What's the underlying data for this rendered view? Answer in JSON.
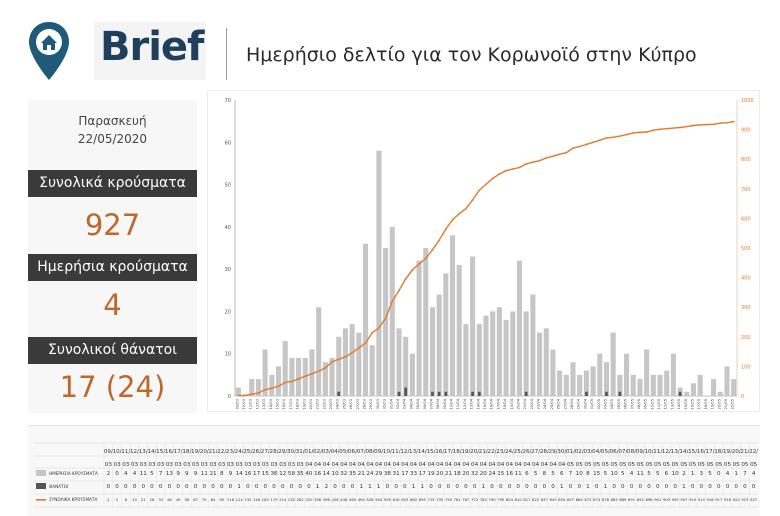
{
  "header": {
    "logo_text": "Brief",
    "title": "Ημερήσιο δελτίο για τον Κορωνοϊό στην Κύπρο",
    "pin_icon": "location-pin-home-icon",
    "pin_color": "#1f5a78"
  },
  "summary": {
    "day": "Παρασκευή",
    "date": "22/05/2020",
    "total_cases_label": "Συνολικά κρούσματα",
    "total_cases_value": "927",
    "daily_cases_label": "Ημερήσια κρούσματα",
    "daily_cases_value": "4",
    "total_deaths_label": "Συνολικοί θάνατοι",
    "total_deaths_value": "17 (24)"
  },
  "colors": {
    "bars": "#c6c6c6",
    "deaths": "#555555",
    "cumulative": "#e07b2e",
    "accent_value": "#c0672a",
    "label_bg": "#3a3a3a"
  },
  "chart_data": {
    "type": "bar",
    "categories": [
      "09/03",
      "10/03",
      "11/03",
      "12/03",
      "13/03",
      "14/03",
      "15/03",
      "16/03",
      "17/03",
      "18/03",
      "19/03",
      "20/03",
      "21/03",
      "22/03",
      "23/03",
      "24/03",
      "25/03",
      "26/03",
      "27/03",
      "28/03",
      "29/03",
      "30/03",
      "31/03",
      "01/04",
      "02/04",
      "03/04",
      "04/04",
      "05/04",
      "06/04",
      "07/04",
      "08/04",
      "09/04",
      "10/04",
      "11/04",
      "12/04",
      "13/04",
      "14/04",
      "15/04",
      "16/04",
      "17/04",
      "18/04",
      "19/04",
      "20/04",
      "21/04",
      "22/04",
      "23/04",
      "24/04",
      "25/04",
      "26/04",
      "27/04",
      "28/04",
      "29/04",
      "30/04",
      "01/05",
      "02/05",
      "03/05",
      "04/05",
      "05/05",
      "06/05",
      "07/05",
      "08/05",
      "09/05",
      "10/05",
      "11/05",
      "12/05",
      "13/05",
      "14/05",
      "15/05",
      "16/05",
      "17/05",
      "18/05",
      "19/05",
      "20/05",
      "21/05",
      "22/05"
    ],
    "series": [
      {
        "name": "ΗΜΕΡΗΣΙΑ ΚΡΟΥΣΜΑΤΑ",
        "type": "bar",
        "axis": "left",
        "values": [
          2,
          0,
          4,
          4,
          11,
          5,
          7,
          13,
          9,
          9,
          9,
          11,
          21,
          8,
          9,
          14,
          16,
          17,
          15,
          36,
          12,
          58,
          35,
          40,
          16,
          14,
          10,
          32,
          35,
          21,
          24,
          29,
          38,
          31,
          17,
          33,
          17,
          19,
          20,
          21,
          18,
          20,
          32,
          20,
          24,
          15,
          16,
          11,
          6,
          5,
          8,
          5,
          6,
          7,
          10,
          8,
          15,
          5,
          10,
          5,
          4,
          11,
          5,
          5,
          6,
          10,
          2,
          1,
          3,
          5,
          0,
          4,
          1,
          7,
          4
        ]
      },
      {
        "name": "ΘΑΝΑΤΟΙ",
        "type": "bar",
        "axis": "left",
        "values": [
          0,
          0,
          0,
          0,
          0,
          0,
          0,
          0,
          0,
          0,
          0,
          0,
          0,
          0,
          0,
          1,
          0,
          0,
          0,
          0,
          0,
          0,
          0,
          0,
          1,
          2,
          0,
          0,
          0,
          1,
          1,
          1,
          0,
          0,
          0,
          1,
          1,
          0,
          0,
          0,
          0,
          0,
          0,
          1,
          0,
          0,
          0,
          0,
          0,
          0,
          0,
          0,
          1,
          0,
          0,
          1,
          0,
          1,
          0,
          0,
          0,
          0,
          0,
          0,
          0,
          0,
          1,
          0,
          0,
          0,
          0,
          0,
          0,
          0,
          0
        ]
      },
      {
        "name": "ΣΥΝΟΛΙΚΑ ΚΡΟΥΣΜΑΤΑ",
        "type": "line",
        "axis": "right",
        "values": [
          2,
          2,
          6,
          10,
          21,
          26,
          33,
          46,
          49,
          58,
          67,
          75,
          84,
          95,
          116,
          124,
          132,
          146,
          162,
          179,
          214,
          230,
          262,
          320,
          356,
          396,
          426,
          446,
          465,
          494,
          526,
          564,
          595,
          616,
          633,
          662,
          695,
          715,
          735,
          750,
          761,
          767,
          772,
          784,
          790,
          795,
          804,
          810,
          817,
          822,
          837,
          843,
          850,
          857,
          864,
          872,
          874,
          878,
          883,
          889,
          891,
          892,
          898,
          901,
          903,
          905,
          907,
          910,
          914,
          916,
          917,
          918,
          922,
          923,
          927
        ]
      }
    ],
    "x_label_row_1": [
      "09/",
      "10/",
      "11/",
      "12/",
      "13/",
      "14/",
      "15/",
      "16/",
      "17/",
      "18/",
      "19/",
      "20/",
      "21/",
      "22/",
      "23/",
      "24/",
      "25/",
      "26/",
      "27/",
      "28/",
      "29/",
      "30/",
      "31/",
      "01/",
      "02/",
      "03/",
      "04/",
      "05/",
      "06/",
      "07/",
      "08/",
      "09/",
      "10/",
      "11/",
      "12/",
      "13/",
      "14/",
      "15/",
      "16/",
      "17/",
      "18/",
      "19/",
      "20/",
      "21/",
      "22/",
      "23/",
      "24/",
      "25/",
      "26/",
      "27/",
      "28/",
      "29/",
      "30/",
      "01/",
      "02/",
      "03/",
      "04/",
      "05/",
      "06/",
      "07/",
      "08/",
      "09/",
      "10/",
      "11/",
      "12/",
      "13/",
      "14/",
      "15/",
      "16/",
      "17/",
      "18/",
      "19/",
      "20/",
      "21/",
      "22/"
    ],
    "x_label_row_2": [
      "03",
      "03",
      "03",
      "03",
      "03",
      "03",
      "03",
      "03",
      "03",
      "03",
      "03",
      "03",
      "03",
      "03",
      "03",
      "03",
      "03",
      "03",
      "03",
      "03",
      "03",
      "03",
      "03",
      "04",
      "04",
      "04",
      "04",
      "04",
      "04",
      "04",
      "04",
      "04",
      "04",
      "04",
      "04",
      "04",
      "04",
      "04",
      "04",
      "04",
      "04",
      "04",
      "04",
      "04",
      "04",
      "04",
      "04",
      "04",
      "04",
      "04",
      "04",
      "04",
      "04",
      "05",
      "05",
      "05",
      "05",
      "05",
      "05",
      "05",
      "05",
      "05",
      "05",
      "05",
      "05",
      "05",
      "05",
      "05",
      "05",
      "05",
      "05",
      "05",
      "05",
      "05",
      "05"
    ],
    "ylim": [
      0,
      70
    ],
    "yticks": [
      0,
      10,
      20,
      30,
      40,
      50,
      60,
      70
    ],
    "y2lim": [
      0,
      1000
    ],
    "y2ticks": [
      0,
      100,
      200,
      300,
      400,
      500,
      600,
      700,
      800,
      900,
      1000
    ],
    "grid": false,
    "legend": "table below chart"
  }
}
